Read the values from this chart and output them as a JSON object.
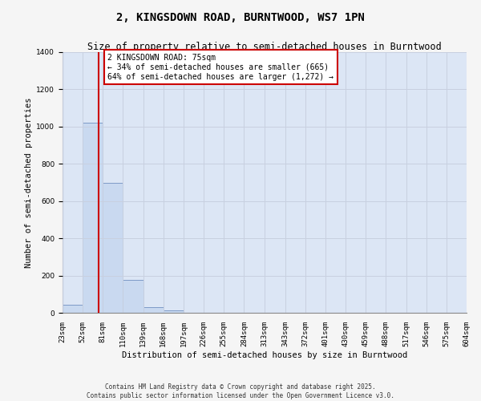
{
  "title": "2, KINGSDOWN ROAD, BURNTWOOD, WS7 1PN",
  "subtitle": "Size of property relative to semi-detached houses in Burntwood",
  "xlabel": "Distribution of semi-detached houses by size in Burntwood",
  "ylabel": "Number of semi-detached properties",
  "bin_edges": [
    23,
    52,
    81,
    110,
    139,
    168,
    197,
    226,
    255,
    284,
    313,
    343,
    372,
    401,
    430,
    459,
    488,
    517,
    546,
    575,
    604
  ],
  "bar_heights": [
    45,
    1020,
    700,
    175,
    30,
    15,
    0,
    0,
    0,
    0,
    0,
    0,
    0,
    0,
    0,
    0,
    0,
    0,
    0,
    0
  ],
  "bar_color": "#c9d9f0",
  "bar_edge_color": "#7090c0",
  "grid_color": "#c8d0e0",
  "bg_color": "#dce6f5",
  "fig_bg_color": "#f5f5f5",
  "property_size": 75,
  "property_line_color": "#cc0000",
  "annotation_text": "2 KINGSDOWN ROAD: 75sqm\n← 34% of semi-detached houses are smaller (665)\n64% of semi-detached houses are larger (1,272) →",
  "annotation_box_color": "#ffffff",
  "annotation_box_edge_color": "#cc0000",
  "ylim": [
    0,
    1400
  ],
  "yticks": [
    0,
    200,
    400,
    600,
    800,
    1000,
    1200,
    1400
  ],
  "footnote": "Contains HM Land Registry data © Crown copyright and database right 2025.\nContains public sector information licensed under the Open Government Licence v3.0.",
  "title_fontsize": 10,
  "subtitle_fontsize": 8.5,
  "axis_label_fontsize": 7.5,
  "tick_fontsize": 6.5,
  "annotation_fontsize": 7
}
